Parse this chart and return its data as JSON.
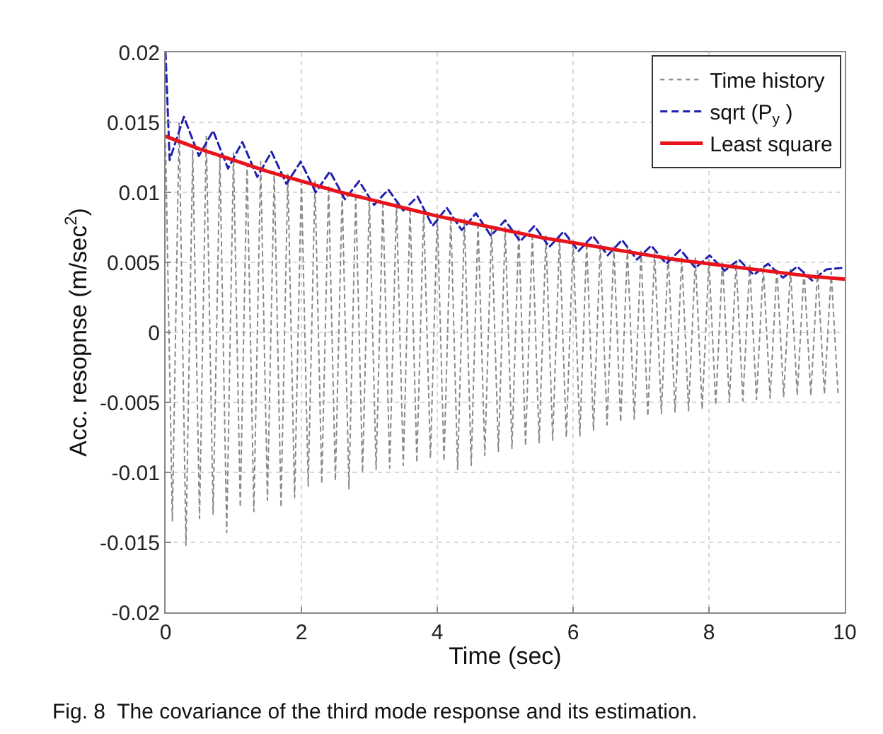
{
  "chart_data": {
    "type": "line",
    "xlabel": "Time (sec)",
    "ylabel": "Acc. resopnse (m/sec$^{2}$)",
    "xlim": [
      0,
      10
    ],
    "xticks": [
      0,
      2,
      4,
      6,
      8,
      10
    ],
    "ylim": [
      -0.02,
      0.02
    ],
    "yticks": [
      -0.02,
      -0.015,
      -0.01,
      -0.005,
      0,
      0.005,
      0.01,
      0.015,
      0.02
    ],
    "grid": true,
    "legend": "top right",
    "marker": "none",
    "annotations": [
      "Fig. 8  The covariance of the third mode response and its estimation."
    ],
    "series": [
      {
        "name": "Time history",
        "color": "#8a8a8a",
        "line_style": "dotted",
        "x": [
          0,
          0.1,
          0.2,
          0.3,
          0.4,
          0.5,
          0.6,
          0.7,
          0.8,
          0.9,
          1.0,
          1.1,
          1.2,
          1.3,
          1.4,
          1.5,
          1.6,
          1.7,
          1.8,
          1.9,
          2.0,
          2.1,
          2.2,
          2.3,
          2.4,
          2.5,
          2.6,
          2.7,
          2.8,
          2.9,
          3.0,
          3.1,
          3.2,
          3.3,
          3.4,
          3.5,
          3.6,
          3.7,
          3.8,
          3.9,
          4.0,
          4.1,
          4.2,
          4.3,
          4.4,
          4.5,
          4.6,
          4.7,
          4.8,
          4.9,
          5.0,
          5.1,
          5.2,
          5.3,
          5.4,
          5.5,
          5.6,
          5.7,
          5.8,
          5.9,
          6.0,
          6.1,
          6.2,
          6.3,
          6.4,
          6.5,
          6.6,
          6.7,
          6.8,
          6.9,
          7.0,
          7.1,
          7.2,
          7.3,
          7.4,
          7.5,
          7.6,
          7.7,
          7.8,
          7.9,
          8.0,
          8.1,
          8.2,
          8.3,
          8.4,
          8.5,
          8.6,
          8.7,
          8.8,
          8.9,
          9.0,
          9.1,
          9.2,
          9.3,
          9.4,
          9.5,
          9.6,
          9.7,
          9.8,
          9.9
        ],
        "values": [
          0.0135,
          -0.0135,
          0.015,
          -0.0152,
          0.013,
          -0.0133,
          0.014,
          -0.013,
          0.0125,
          -0.0143,
          0.0128,
          -0.0125,
          0.012,
          -0.0128,
          0.0122,
          -0.012,
          0.0115,
          -0.0125,
          0.0113,
          -0.0118,
          0.011,
          -0.011,
          0.0108,
          -0.0108,
          0.0105,
          -0.0106,
          0.0101,
          -0.0112,
          0.0099,
          -0.01,
          0.0096,
          -0.0098,
          0.0094,
          -0.0097,
          0.0092,
          -0.0095,
          0.0089,
          -0.0093,
          0.0087,
          -0.009,
          0.0085,
          -0.0092,
          0.0083,
          -0.0098,
          0.0081,
          -0.0095,
          0.0079,
          -0.0088,
          0.0076,
          -0.0085,
          0.0075,
          -0.0083,
          0.0073,
          -0.0081,
          0.0071,
          -0.0079,
          0.0069,
          -0.0077,
          0.0068,
          -0.0075,
          0.0066,
          -0.0074,
          0.0064,
          -0.007,
          0.0063,
          -0.0066,
          0.0061,
          -0.0064,
          0.006,
          -0.0062,
          0.0058,
          -0.006,
          0.0057,
          -0.0058,
          0.0056,
          -0.0057,
          0.0054,
          -0.0056,
          0.0053,
          -0.0055,
          0.0052,
          -0.0052,
          0.0051,
          -0.005,
          0.005,
          -0.0049,
          0.0048,
          -0.0048,
          0.0047,
          -0.0047,
          0.0046,
          -0.0046,
          0.0045,
          -0.0045,
          0.0045,
          -0.0045,
          0.0044,
          -0.0044,
          0.0043,
          -0.0043
        ]
      },
      {
        "name": "sqrt (P$_{y}$ )",
        "color": "#2020b0",
        "line_style": "dashed",
        "x": [
          0,
          0.06,
          0.27,
          0.49,
          0.7,
          0.92,
          1.13,
          1.35,
          1.56,
          1.78,
          1.99,
          2.21,
          2.42,
          2.64,
          2.85,
          3.07,
          3.28,
          3.5,
          3.71,
          3.93,
          4.14,
          4.36,
          4.57,
          4.79,
          5.0,
          5.22,
          5.43,
          5.65,
          5.86,
          6.08,
          6.29,
          6.51,
          6.72,
          6.94,
          7.15,
          7.37,
          7.58,
          7.8,
          8.01,
          8.23,
          8.44,
          8.66,
          8.87,
          9.09,
          9.3,
          9.52,
          9.73,
          9.95
        ],
        "values": [
          0.02,
          0.0123,
          0.0154,
          0.0126,
          0.0144,
          0.0117,
          0.0136,
          0.0111,
          0.0129,
          0.0106,
          0.0122,
          0.01,
          0.0115,
          0.0095,
          0.0108,
          0.0091,
          0.0102,
          0.0087,
          0.0097,
          0.0076,
          0.0089,
          0.0073,
          0.0085,
          0.0069,
          0.008,
          0.0065,
          0.0076,
          0.0061,
          0.0072,
          0.0058,
          0.0069,
          0.0055,
          0.0066,
          0.0052,
          0.0062,
          0.0049,
          0.0059,
          0.0046,
          0.0055,
          0.0044,
          0.0052,
          0.0041,
          0.0049,
          0.0039,
          0.0047,
          0.0037,
          0.0045,
          0.0046
        ]
      },
      {
        "name": "Least square",
        "color": "#e8141c",
        "line_style": "solid",
        "x": [
          0,
          0.5,
          1,
          1.5,
          2,
          2.5,
          3,
          3.5,
          4,
          4.5,
          5,
          5.5,
          6,
          6.5,
          7,
          7.5,
          8,
          8.5,
          9,
          9.5,
          10
        ],
        "values": [
          0.014,
          0.0131,
          0.0123,
          0.0115,
          0.0108,
          0.0101,
          0.0095,
          0.0089,
          0.0083,
          0.0078,
          0.0073,
          0.0068,
          0.0064,
          0.006,
          0.0056,
          0.0052,
          0.0049,
          0.0046,
          0.0043,
          0.004,
          0.0038
        ]
      }
    ]
  }
}
